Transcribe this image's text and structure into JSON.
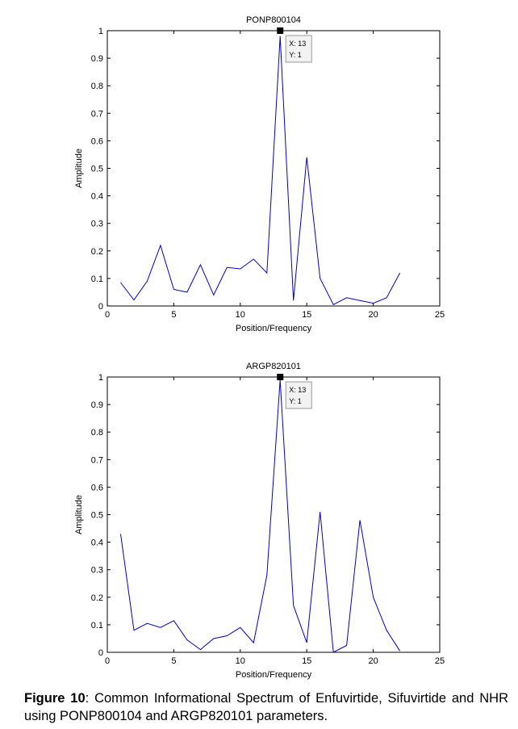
{
  "chart_data": [
    {
      "type": "line",
      "title": "PONP800104",
      "xlabel": "Position/Frequency",
      "ylabel": "Amplitude",
      "xlim": [
        0,
        25
      ],
      "ylim": [
        0,
        1
      ],
      "xticks": [
        "0",
        "5",
        "10",
        "15",
        "20",
        "25"
      ],
      "yticks": [
        "0",
        "0.1",
        "0.2",
        "0.3",
        "0.4",
        "0.5",
        "0.6",
        "0.7",
        "0.8",
        "0.9",
        "1"
      ],
      "line_color": "#0000cc",
      "grid": false,
      "series": [
        {
          "x": [
            1,
            2,
            3,
            4,
            5,
            6,
            7,
            8,
            9,
            10,
            11,
            12,
            13,
            14,
            15,
            16,
            17,
            18,
            19,
            20,
            21,
            22
          ],
          "values": [
            0.085,
            0.022,
            0.09,
            0.22,
            0.06,
            0.05,
            0.15,
            0.04,
            0.14,
            0.135,
            0.17,
            0.12,
            0.98,
            0.02,
            0.54,
            0.1,
            0.005,
            0.03,
            0.02,
            0.01,
            0.03,
            0.12
          ]
        }
      ],
      "datatip": {
        "x": 13,
        "y": 1,
        "x_label": "X: 13",
        "y_label": "Y: 1"
      }
    },
    {
      "type": "line",
      "title": "ARGP820101",
      "xlabel": "Position/Frequency",
      "ylabel": "Amplitude",
      "xlim": [
        0,
        25
      ],
      "ylim": [
        0,
        1
      ],
      "xticks": [
        "0",
        "5",
        "10",
        "15",
        "20",
        "25"
      ],
      "yticks": [
        "0",
        "0.1",
        "0.2",
        "0.3",
        "0.4",
        "0.5",
        "0.6",
        "0.7",
        "0.8",
        "0.9",
        "1"
      ],
      "line_color": "#0000cc",
      "grid": false,
      "series": [
        {
          "x": [
            1,
            2,
            3,
            4,
            5,
            6,
            7,
            8,
            9,
            10,
            11,
            12,
            13,
            14,
            15,
            16,
            17,
            18,
            19,
            20,
            21,
            22
          ],
          "values": [
            0.43,
            0.08,
            0.105,
            0.09,
            0.115,
            0.045,
            0.01,
            0.05,
            0.06,
            0.09,
            0.035,
            0.28,
            0.99,
            0.17,
            0.035,
            0.51,
            0.0,
            0.025,
            0.48,
            0.2,
            0.08,
            0.005
          ]
        }
      ],
      "datatip": {
        "x": 13,
        "y": 1,
        "x_label": "X: 13",
        "y_label": "Y: 1"
      }
    }
  ],
  "caption": {
    "label": "Figure 10",
    "text": ": Common Informational Spectrum of Enfuvirtide, Sifuvirtide and NHR using PONP800104 and ARGP820101 parameters."
  }
}
